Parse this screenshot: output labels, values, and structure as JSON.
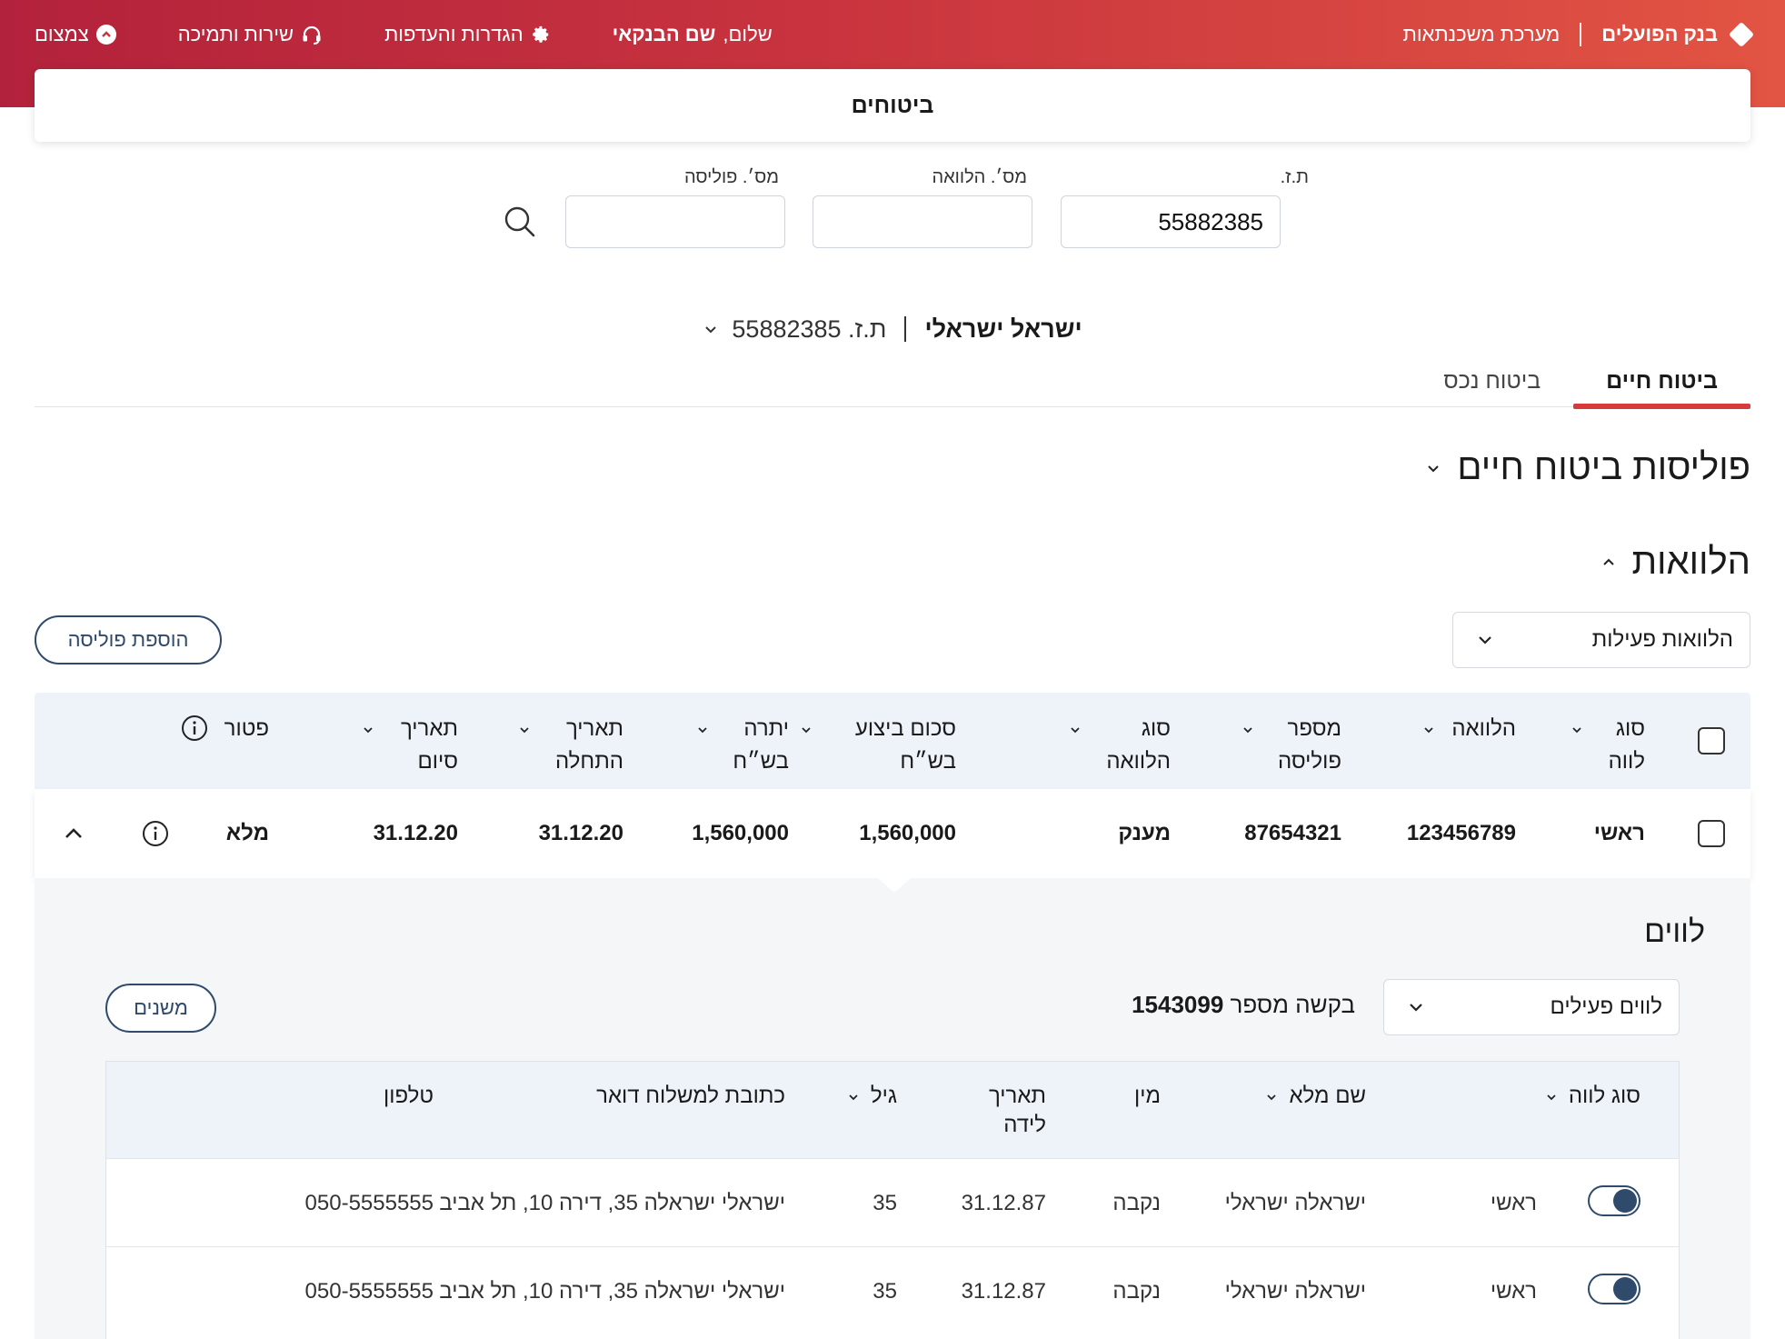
{
  "header": {
    "brand": "בנק הפועלים",
    "system": "מערכת משכנתאות",
    "greeting_prefix": "שלום,",
    "greeting_name": "שם הבנקאי",
    "settings": "הגדרות והעדפות",
    "support": "שירות ותמיכה",
    "collapse": "צמצום"
  },
  "page_title": "ביטוחים",
  "search": {
    "id_label": "ת.ז.",
    "id_value": "55882385",
    "loan_label": "מס׳. הלוואה",
    "loan_value": "",
    "policy_label": "מס׳. פוליסה",
    "policy_value": ""
  },
  "customer": {
    "name": "ישראל ישראלי",
    "id_text": "ת.ז. 55882385"
  },
  "tabs": [
    {
      "label": "ביטוח חיים",
      "active": true
    },
    {
      "label": "ביטוח נכס",
      "active": false
    }
  ],
  "life_policies_title": "פוליסות ביטוח חיים",
  "loans_section": {
    "title": "הלוואות",
    "filter_value": "הלוואות פעילות",
    "add_button": "הוספת פוליסה",
    "columns": [
      "סוג לווה",
      "הלוואה",
      "מספר פוליסה",
      "סוג הלוואה",
      "סכום ביצוע בש״ח",
      "יתרה בש״ח",
      "תאריך התחלה",
      "תאריך סיום",
      "פטור"
    ],
    "rows": [
      {
        "borrower_type": "ראשי",
        "loan": "123456789",
        "policy": "87654321",
        "loan_type": "מענק",
        "amount": "1,560,000",
        "balance": "1,560,000",
        "start": "31.12.20",
        "end": "31.12.20",
        "exemption": "מלא"
      }
    ]
  },
  "borrowers": {
    "title": "לווים",
    "filter_value": "לווים פעילים",
    "request_label": "בקשה מספר",
    "request_number": "1543099",
    "change_button": "משנים",
    "columns": [
      "סוג לווה",
      "שם מלא",
      "מין",
      "תאריך לידה",
      "גיל",
      "כתובת למשלוח דואר",
      "טלפון"
    ],
    "rows": [
      {
        "type": "ראשי",
        "name": "ישראלה ישראלי",
        "gender": "נקבה",
        "dob": "31.12.87",
        "age": "35",
        "address": "ישראלי ישראלה 35, דירה 10, תל אביב",
        "phone": "050-5555555"
      },
      {
        "type": "ראשי",
        "name": "ישראלה ישראלי",
        "gender": "נקבה",
        "dob": "31.12.87",
        "age": "35",
        "address": "ישראלי ישראלה 35, דירה 10, תל אביב",
        "phone": "050-5555555"
      }
    ]
  }
}
